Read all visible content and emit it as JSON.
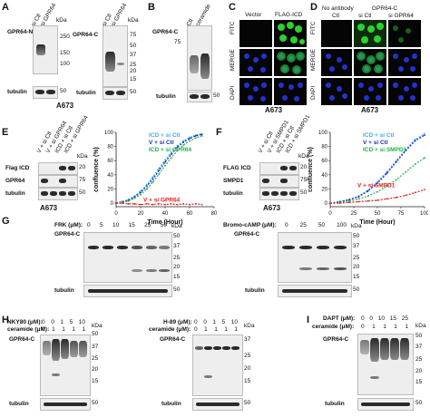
{
  "panelA": {
    "letter": "A",
    "blot1": {
      "label": "GPR64-N",
      "lanes": [
        "si Ctl",
        "si GPR64"
      ],
      "kda": [
        "250",
        "150",
        "100"
      ],
      "loading": "tubulin",
      "loading_kda": "50"
    },
    "blot2": {
      "label": "GPR64-C",
      "lanes": [
        "si Ctl",
        "si GPR64"
      ],
      "kda": [
        "75",
        "50",
        "37",
        "25",
        "20",
        "15"
      ],
      "loading": "tubulin",
      "loading_kda": "50"
    },
    "cell": "A673"
  },
  "panelB": {
    "letter": "B",
    "label": "GPR64-C",
    "lanes": [
      "Ctl",
      "ceramide"
    ],
    "kda": [
      "75"
    ],
    "loading": "tubulin",
    "loading_kda": "50"
  },
  "panelC": {
    "letter": "C",
    "cols": [
      "Vector",
      "FLAG-ICD"
    ],
    "rows": [
      "FITC",
      "MERGE",
      "DAPI"
    ],
    "cell": "A673"
  },
  "panelD": {
    "letter": "D",
    "header_left": "No antibody",
    "header_right": "GPR64-C",
    "cols": [
      "Ctl",
      "si Ctl",
      "si GPR64"
    ],
    "rows": [
      "FITC",
      "MERGE",
      "DAPI"
    ],
    "cell": "A673"
  },
  "panelE": {
    "letter": "E",
    "lanes": [
      "V + si Ctl",
      "V + si GPR64",
      "ICD + si Ctl",
      "ICD + si GPR64"
    ],
    "rows": [
      "Flag ICD",
      "GPR64",
      "tubulin"
    ],
    "row_kda": [
      "20",
      "75",
      "50"
    ],
    "cell": "A673"
  },
  "panelF": {
    "letter": "F",
    "lanes": [
      "V + si Ctl",
      "V + si SMPD1",
      "ICD + si Ctl",
      "ICD + si SMPD1"
    ],
    "rows": [
      "FLAG ICD",
      "SMPD1",
      "tubulin"
    ],
    "row_kda": [
      "20",
      "75",
      "50"
    ],
    "cell": "A673"
  },
  "chart_data": [
    {
      "type": "line",
      "ylabel": "confluence (%)",
      "xlabel": "Time (Hour)",
      "xlim": [
        0,
        80
      ],
      "ylim": [
        -5,
        100
      ],
      "xticks": [
        "0",
        "20",
        "40",
        "60",
        "80"
      ],
      "yticks": [
        "0",
        "20",
        "40",
        "60",
        "80",
        "100"
      ],
      "series": [
        {
          "name": "ICD + si Ctl",
          "color": "#3fa9f5",
          "x": [
            0,
            5,
            10,
            15,
            20,
            25,
            30,
            35,
            40,
            45,
            50,
            55,
            60,
            65,
            70
          ],
          "values": [
            0,
            2,
            5,
            10,
            17,
            26,
            37,
            49,
            61,
            72,
            81,
            88,
            93,
            96,
            98
          ]
        },
        {
          "name": "V + si Ctl",
          "color": "#1a2eb8",
          "x": [
            0,
            5,
            10,
            15,
            20,
            25,
            30,
            35,
            40,
            45,
            50,
            55,
            60,
            65,
            70
          ],
          "values": [
            0,
            2,
            4,
            9,
            15,
            24,
            34,
            46,
            58,
            69,
            79,
            86,
            91,
            95,
            97
          ]
        },
        {
          "name": "ICD + si GPR64",
          "color": "#22b14c",
          "x": [
            0,
            5,
            10,
            15,
            20,
            25,
            30,
            35,
            40,
            45,
            50,
            55,
            60,
            65,
            70
          ],
          "values": [
            0,
            1,
            3,
            7,
            12,
            20,
            30,
            41,
            53,
            64,
            74,
            82,
            88,
            92,
            95
          ]
        },
        {
          "name": "V + si GPR64",
          "color": "#e02020",
          "x": [
            0,
            5,
            10,
            15,
            20,
            25,
            30,
            35,
            40,
            45,
            50,
            55,
            60,
            65,
            70
          ],
          "values": [
            0,
            0,
            -1,
            -1,
            -2,
            -1,
            -2,
            -1,
            -2,
            -1,
            -2,
            -1,
            -2,
            -1,
            -2
          ]
        }
      ]
    },
    {
      "type": "line",
      "ylabel": "confluence (%)",
      "xlabel": "Time (Hour)",
      "xlim": [
        0,
        100
      ],
      "ylim": [
        -5,
        100
      ],
      "xticks": [
        "0",
        "25",
        "50",
        "75",
        "100"
      ],
      "yticks": [
        "0",
        "20",
        "40",
        "60",
        "80",
        "100"
      ],
      "series": [
        {
          "name": "ICD + si Ctl",
          "color": "#3fa9f5",
          "x": [
            0,
            10,
            20,
            30,
            40,
            50,
            60,
            70,
            80,
            90,
            100
          ],
          "values": [
            0,
            2,
            5,
            10,
            18,
            30,
            44,
            60,
            76,
            90,
            98
          ]
        },
        {
          "name": "V + si Ctl",
          "color": "#1a2eb8",
          "x": [
            0,
            10,
            20,
            30,
            40,
            50,
            60,
            70,
            80,
            90,
            100
          ],
          "values": [
            0,
            2,
            5,
            9,
            17,
            28,
            42,
            58,
            74,
            88,
            96
          ]
        },
        {
          "name": "ICD + si SMPD1",
          "color": "#22b14c",
          "x": [
            0,
            10,
            20,
            30,
            40,
            50,
            60,
            70,
            80,
            90,
            100
          ],
          "values": [
            0,
            1,
            3,
            6,
            10,
            16,
            24,
            33,
            44,
            55,
            64
          ]
        },
        {
          "name": "V + si SMPD1",
          "color": "#e02020",
          "x": [
            0,
            10,
            20,
            30,
            40,
            50,
            60,
            70,
            80,
            90,
            100
          ],
          "values": [
            0,
            0,
            1,
            2,
            3,
            4,
            6,
            8,
            11,
            15,
            19
          ]
        }
      ]
    }
  ],
  "panelG": {
    "letter": "G",
    "left": {
      "treatment": "FRK (μM):",
      "doses": [
        "0",
        "5",
        "10",
        "15",
        "25",
        "50"
      ],
      "label": "GPR64-C",
      "kda": [
        "50",
        "37",
        "25",
        "20",
        "15"
      ],
      "loading": "tubulin",
      "loading_kda": "50"
    },
    "right": {
      "treatment": "Bromo-cAMP (μM):",
      "doses": [
        "0",
        "25",
        "50",
        "100"
      ],
      "label": "GPR64-C",
      "kda": [
        "50",
        "37",
        "25",
        "20",
        "15"
      ],
      "loading": "tubulin",
      "loading_kda": "50"
    }
  },
  "panelH": {
    "letter": "H",
    "left": {
      "treatment": "NKY80 (μM):",
      "doses": [
        "0",
        "0",
        "1",
        "5",
        "10"
      ],
      "ceramide": "ceramide (μM):",
      "cer_doses": [
        "0",
        "1",
        "1",
        "1",
        "1"
      ],
      "label": "GPR64-C",
      "kda": [
        "50",
        "37",
        "25",
        "20",
        "15"
      ],
      "loading": "tubulin",
      "loading_kda": "50"
    },
    "right": {
      "treatment": "H-89 (μM):",
      "doses": [
        "0",
        "0",
        "1",
        "5",
        "10"
      ],
      "ceramide": "ceramide (μM):",
      "cer_doses": [
        "0",
        "1",
        "1",
        "1",
        "1"
      ],
      "label": "GPR64-C",
      "kda": [
        "37",
        "25",
        "20",
        "15"
      ],
      "loading": "tubulin",
      "loading_kda": "50"
    }
  },
  "panelI": {
    "letter": "I",
    "treatment": "DAPT (μM):",
    "doses": [
      "0",
      "0",
      "10",
      "15",
      "25"
    ],
    "ceramide": "ceramide (μM):",
    "cer_doses": [
      "0",
      "1",
      "1",
      "1",
      "1"
    ],
    "label": "GPR64-C",
    "kda": [
      "50",
      "37",
      "25",
      "20",
      "15"
    ],
    "loading": "tubulin",
    "loading_kda": "50"
  },
  "kda_unit": "kDa"
}
